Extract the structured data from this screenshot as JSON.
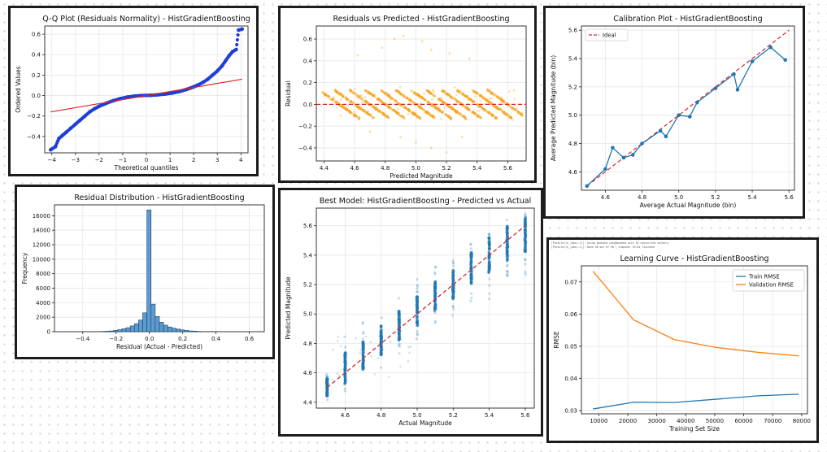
{
  "colors": {
    "blue": "#1f77b4",
    "orange": "#ff7f0e",
    "red": "#d62728",
    "scatter_orange": "#f5a623",
    "grid": "#e6e6e6"
  },
  "charts": [
    {
      "id": "qq",
      "type": "scatter",
      "title": "Q-Q Plot (Residuals Normality) - HistGradientBoosting",
      "xlabel": "Theoretical quantiles",
      "ylabel": "Ordered Values",
      "xlim": [
        -4.3,
        4.3
      ],
      "ylim": [
        -0.56,
        0.68
      ],
      "xticks": [
        -4,
        -3,
        -2,
        -1,
        0,
        1,
        2,
        3,
        4
      ],
      "yticks": [
        -0.4,
        -0.2,
        0.0,
        0.2,
        0.4,
        0.6
      ],
      "xtick_labels": [
        "−4",
        "−3",
        "−2",
        "−1",
        "0",
        "1",
        "2",
        "3",
        "4"
      ],
      "ytick_labels": [
        "−0.4",
        "−0.2",
        "0.0",
        "0.2",
        "0.4",
        "0.6"
      ],
      "series": [
        {
          "kind": "points",
          "points": [
            [
              -4.05,
              -0.53
            ],
            [
              -3.85,
              -0.5
            ],
            [
              -3.7,
              -0.42
            ],
            [
              -3.55,
              -0.39
            ],
            [
              -3.4,
              -0.36
            ],
            [
              -3.2,
              -0.32
            ],
            [
              -3.0,
              -0.28
            ],
            [
              -2.8,
              -0.24
            ],
            [
              -2.6,
              -0.2
            ],
            [
              -2.4,
              -0.16
            ],
            [
              -2.2,
              -0.13
            ],
            [
              -2.0,
              -0.105
            ],
            [
              -1.7,
              -0.075
            ],
            [
              -1.4,
              -0.05
            ],
            [
              -1.1,
              -0.03
            ],
            [
              -0.8,
              -0.015
            ],
            [
              -0.5,
              -0.005
            ],
            [
              -0.2,
              0.0
            ],
            [
              0.2,
              0.003
            ],
            [
              0.5,
              0.008
            ],
            [
              0.8,
              0.015
            ],
            [
              1.1,
              0.025
            ],
            [
              1.4,
              0.04
            ],
            [
              1.7,
              0.06
            ],
            [
              2.0,
              0.085
            ],
            [
              2.2,
              0.105
            ],
            [
              2.4,
              0.13
            ],
            [
              2.6,
              0.16
            ],
            [
              2.8,
              0.2
            ],
            [
              3.0,
              0.24
            ],
            [
              3.2,
              0.29
            ],
            [
              3.35,
              0.34
            ],
            [
              3.5,
              0.39
            ],
            [
              3.65,
              0.43
            ],
            [
              3.8,
              0.45
            ],
            [
              3.9,
              0.64
            ],
            [
              4.05,
              0.65
            ]
          ]
        },
        {
          "kind": "line",
          "color": "red",
          "points": [
            [
              -4.05,
              -0.16
            ],
            [
              4.05,
              0.16
            ]
          ]
        }
      ]
    },
    {
      "id": "resid",
      "type": "scatter",
      "title": "Residuals vs Predicted - HistGradientBoosting",
      "xlabel": "Predicted Magnitude",
      "ylabel": "Residual",
      "xlim": [
        4.35,
        5.72
      ],
      "ylim": [
        -0.52,
        0.72
      ],
      "xticks": [
        4.4,
        4.6,
        4.8,
        5.0,
        5.2,
        5.4,
        5.6
      ],
      "yticks": [
        -0.4,
        -0.2,
        0.0,
        0.2,
        0.4,
        0.6
      ],
      "xtick_labels": [
        "4.4",
        "4.6",
        "4.8",
        "5.0",
        "5.2",
        "5.4",
        "5.6"
      ],
      "ytick_labels": [
        "−0.4",
        "−0.2",
        "0.0",
        "0.2",
        "0.4",
        "0.6"
      ],
      "bands_actual": [
        4.5,
        4.6,
        4.7,
        4.8,
        4.9,
        5.0,
        5.1,
        5.2,
        5.3,
        5.4,
        5.5,
        5.6
      ],
      "band_halfwidth": 0.13,
      "outliers": [
        [
          4.62,
          0.45
        ],
        [
          4.78,
          0.52
        ],
        [
          4.86,
          0.6
        ],
        [
          4.92,
          0.63
        ],
        [
          5.04,
          0.58
        ],
        [
          5.1,
          0.5
        ],
        [
          5.22,
          0.47
        ],
        [
          5.35,
          0.42
        ],
        [
          4.9,
          -0.3
        ],
        [
          5.0,
          -0.35
        ],
        [
          5.1,
          -0.4
        ],
        [
          5.2,
          -0.44
        ],
        [
          4.7,
          -0.25
        ],
        [
          5.3,
          -0.3
        ]
      ],
      "hline": 0
    },
    {
      "id": "calib",
      "type": "line",
      "title": "Calibration Plot - HistGradientBoosting",
      "xlabel": "Average Actual Magnitude (bin)",
      "ylabel": "Average Predicted Magnitude (bin)",
      "xlim": [
        4.47,
        5.63
      ],
      "ylim": [
        4.47,
        5.63
      ],
      "xticks": [
        4.6,
        4.8,
        5.0,
        5.2,
        5.4,
        5.6
      ],
      "yticks": [
        4.6,
        4.8,
        5.0,
        5.2,
        5.4,
        5.6
      ],
      "xtick_labels": [
        "4.6",
        "4.8",
        "5.0",
        "5.2",
        "5.4",
        "5.6"
      ],
      "ytick_labels": [
        "4.6",
        "4.8",
        "5.0",
        "5.2",
        "5.4",
        "5.6"
      ],
      "legend": [
        "Ideal"
      ],
      "x": [
        4.5,
        4.6,
        4.64,
        4.7,
        4.75,
        4.8,
        4.9,
        4.93,
        5.0,
        5.06,
        5.1,
        5.2,
        5.3,
        5.32,
        5.4,
        5.5,
        5.58
      ],
      "y": [
        4.5,
        4.62,
        4.77,
        4.7,
        4.72,
        4.8,
        4.89,
        4.85,
        5.0,
        4.99,
        5.09,
        5.19,
        5.29,
        5.18,
        5.38,
        5.48,
        5.39
      ],
      "ideal": [
        [
          4.5,
          4.5
        ],
        [
          5.6,
          5.6
        ]
      ]
    },
    {
      "id": "hist",
      "type": "bar",
      "title": "Residual Distribution - HistGradientBoosting",
      "xlabel": "Residual (Actual - Predicted)",
      "ylabel": "Frequency",
      "xlim": [
        -0.57,
        0.69
      ],
      "ylim": [
        0,
        17500
      ],
      "xticks": [
        -0.4,
        -0.2,
        0.0,
        0.2,
        0.4,
        0.6
      ],
      "yticks": [
        0,
        2000,
        4000,
        6000,
        8000,
        10000,
        12000,
        14000,
        16000
      ],
      "xtick_labels": [
        "−0.4",
        "−0.2",
        "0.0",
        "0.2",
        "0.4",
        "0.6"
      ],
      "ytick_labels": [
        "0",
        "2000",
        "4000",
        "6000",
        "8000",
        "10000",
        "12000",
        "14000",
        "16000"
      ],
      "bin_width": 0.025,
      "bins": [
        [
          -0.54,
          20
        ],
        [
          -0.29,
          40
        ],
        [
          -0.265,
          60
        ],
        [
          -0.24,
          100
        ],
        [
          -0.215,
          180
        ],
        [
          -0.19,
          280
        ],
        [
          -0.165,
          400
        ],
        [
          -0.14,
          550
        ],
        [
          -0.115,
          800
        ],
        [
          -0.09,
          1100
        ],
        [
          -0.065,
          1600
        ],
        [
          -0.04,
          2600
        ],
        [
          -0.015,
          16800
        ],
        [
          0.01,
          3800
        ],
        [
          0.035,
          2100
        ],
        [
          0.06,
          1300
        ],
        [
          0.085,
          900
        ],
        [
          0.11,
          650
        ],
        [
          0.135,
          480
        ],
        [
          0.16,
          350
        ],
        [
          0.185,
          250
        ],
        [
          0.21,
          170
        ],
        [
          0.235,
          110
        ],
        [
          0.26,
          70
        ],
        [
          0.285,
          40
        ],
        [
          0.36,
          30
        ],
        [
          0.61,
          10
        ]
      ]
    },
    {
      "id": "best",
      "type": "scatter",
      "title": "Best Model: HistGradientBoosting - Predicted vs Actual",
      "xlabel": "Actual Magnitude",
      "ylabel": "Predicted Magnitude",
      "xlim": [
        4.44,
        5.65
      ],
      "ylim": [
        4.36,
        5.72
      ],
      "xticks": [
        4.6,
        4.8,
        5.0,
        5.2,
        5.4,
        5.6
      ],
      "yticks": [
        4.4,
        4.6,
        4.8,
        5.0,
        5.2,
        5.4,
        5.6
      ],
      "xtick_labels": [
        "4.6",
        "4.8",
        "5.0",
        "5.2",
        "5.4",
        "5.6"
      ],
      "ytick_labels": [
        "4.4",
        "4.6",
        "4.8",
        "5.0",
        "5.2",
        "5.4",
        "5.6"
      ],
      "columns": [
        {
          "x": 4.5,
          "lo": 4.44,
          "hi": 4.56,
          "tail_lo": 4.4,
          "tail_hi": 4.6
        },
        {
          "x": 4.6,
          "lo": 4.52,
          "hi": 4.74,
          "tail_lo": 4.45,
          "tail_hi": 4.85
        },
        {
          "x": 4.7,
          "lo": 4.62,
          "hi": 4.82,
          "tail_lo": 4.55,
          "tail_hi": 4.95
        },
        {
          "x": 4.8,
          "lo": 4.72,
          "hi": 4.92,
          "tail_lo": 4.62,
          "tail_hi": 5.05
        },
        {
          "x": 4.9,
          "lo": 4.82,
          "hi": 5.02,
          "tail_lo": 4.72,
          "tail_hi": 5.12
        },
        {
          "x": 5.0,
          "lo": 4.92,
          "hi": 5.12,
          "tail_lo": 4.8,
          "tail_hi": 5.25
        },
        {
          "x": 5.1,
          "lo": 5.02,
          "hi": 5.22,
          "tail_lo": 4.88,
          "tail_hi": 5.35
        },
        {
          "x": 5.2,
          "lo": 5.1,
          "hi": 5.3,
          "tail_lo": 4.95,
          "tail_hi": 5.42
        },
        {
          "x": 5.3,
          "lo": 5.2,
          "hi": 5.42,
          "tail_lo": 5.05,
          "tail_hi": 5.5
        },
        {
          "x": 5.4,
          "lo": 5.28,
          "hi": 5.52,
          "tail_lo": 5.1,
          "tail_hi": 5.6
        },
        {
          "x": 5.5,
          "lo": 5.36,
          "hi": 5.6,
          "tail_lo": 5.2,
          "tail_hi": 5.66
        },
        {
          "x": 5.6,
          "lo": 5.42,
          "hi": 5.66,
          "tail_lo": 5.25,
          "tail_hi": 5.7
        }
      ],
      "ideal": [
        [
          4.5,
          4.5
        ],
        [
          5.6,
          5.6
        ]
      ]
    },
    {
      "id": "learn",
      "type": "line",
      "title": "Learning Curve - HistGradientBoosting",
      "xlabel": "Training Set Size",
      "ylabel": "RMSE",
      "xlim": [
        4000,
        82000
      ],
      "ylim": [
        0.029,
        0.075
      ],
      "xticks": [
        10000,
        20000,
        30000,
        40000,
        50000,
        60000,
        70000,
        80000
      ],
      "yticks": [
        0.03,
        0.04,
        0.05,
        0.06,
        0.07
      ],
      "xtick_labels": [
        "10000",
        "20000",
        "30000",
        "40000",
        "50000",
        "60000",
        "70000",
        "80000"
      ],
      "ytick_labels": [
        "0.03",
        "0.04",
        "0.05",
        "0.06",
        "0.07"
      ],
      "series": [
        {
          "name": "Train RMSE",
          "color": "blue",
          "x": [
            8000,
            22000,
            36000,
            50000,
            65000,
            79000
          ],
          "y": [
            0.0305,
            0.0326,
            0.0325,
            0.0335,
            0.0346,
            0.0351
          ]
        },
        {
          "name": "Validation RMSE",
          "color": "orange",
          "x": [
            8000,
            22000,
            36000,
            50000,
            65000,
            79000
          ],
          "y": [
            0.0733,
            0.0582,
            0.0521,
            0.0497,
            0.0481,
            0.047
          ]
        }
      ],
      "log_lines": [
        "[Parallel(n_jobs=-1)]: Using backend LokyBackend with 16 concurrent workers.",
        "[Parallel(n_jobs=-1)]: Done  50 out of  50 | elapsed:   59.8s finished"
      ]
    }
  ]
}
